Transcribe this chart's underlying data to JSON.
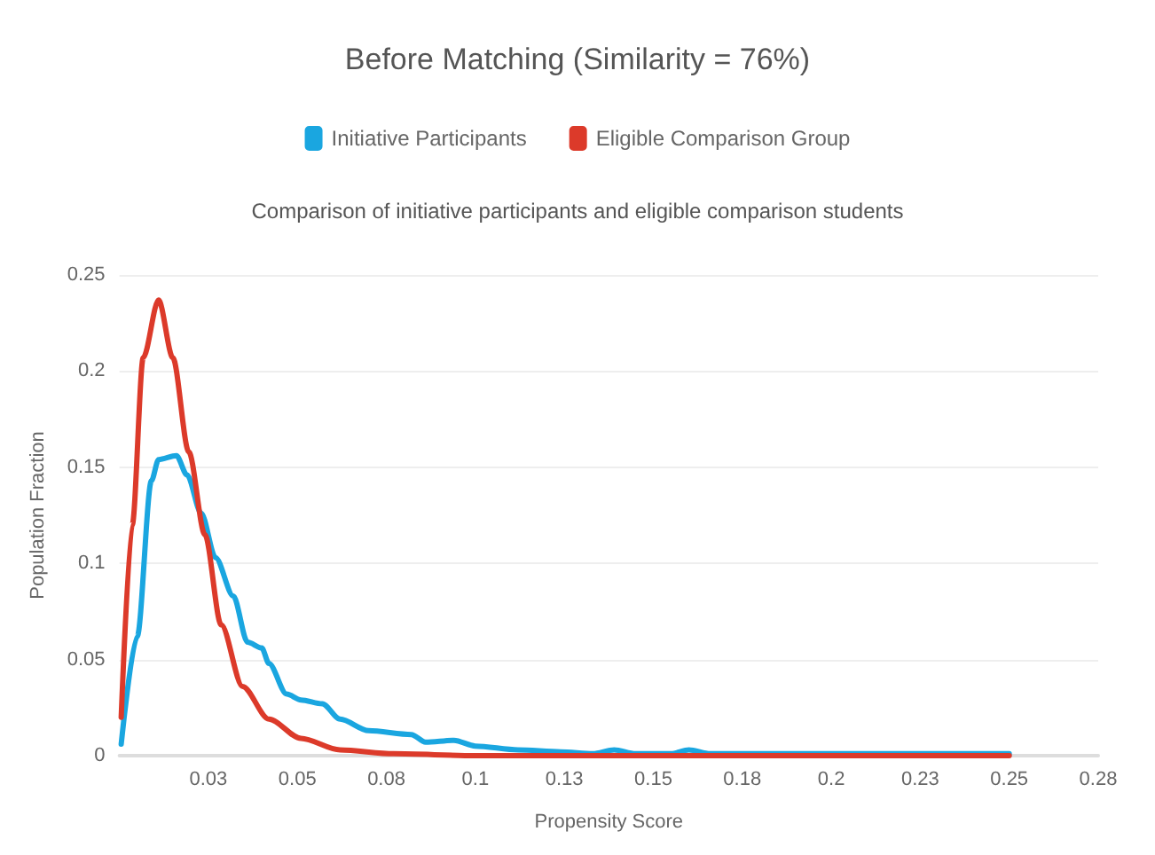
{
  "chart_data": {
    "type": "line",
    "title": "Before Matching (Similarity = 76%)",
    "subtitle": "Comparison of initiative participants and eligible comparison students",
    "xlabel": "Propensity Score",
    "ylabel": "Population Fraction",
    "xlim": [
      0,
      0.275
    ],
    "xticks": [
      {
        "value": 0.025,
        "label": "0.03"
      },
      0.05,
      {
        "value": 0.075,
        "label": "0.08"
      },
      0.1,
      {
        "value": 0.125,
        "label": "0.13"
      },
      0.15,
      {
        "value": 0.175,
        "label": "0.18"
      },
      0.2,
      {
        "value": 0.225,
        "label": "0.23"
      },
      0.25,
      {
        "value": 0.275,
        "label": "0.28"
      }
    ],
    "ylim": [
      0,
      0.25
    ],
    "yticks": [
      0,
      0.05,
      0.1,
      0.15,
      0.2,
      0.25
    ],
    "grid": "y",
    "legend": "top",
    "marker": "none",
    "line_style": "solid",
    "series": [
      {
        "name": "Initiative Participants",
        "color": "#1aa6e0",
        "x": [
          0.0005,
          0.005,
          0.009,
          0.011,
          0.016,
          0.019,
          0.023,
          0.027,
          0.032,
          0.036,
          0.04,
          0.042,
          0.047,
          0.051,
          0.057,
          0.062,
          0.07,
          0.082,
          0.086,
          0.094,
          0.1,
          0.112,
          0.124,
          0.133,
          0.139,
          0.145,
          0.155,
          0.16,
          0.166,
          0.18,
          0.2,
          0.22,
          0.25
        ],
        "values": [
          0.006,
          0.062,
          0.143,
          0.154,
          0.156,
          0.146,
          0.126,
          0.103,
          0.083,
          0.059,
          0.056,
          0.048,
          0.032,
          0.029,
          0.027,
          0.019,
          0.013,
          0.011,
          0.007,
          0.008,
          0.005,
          0.003,
          0.002,
          0.001,
          0.003,
          0.001,
          0.001,
          0.003,
          0.001,
          0.001,
          0.001,
          0.001,
          0.001
        ]
      },
      {
        "name": "Eligible Comparison Group",
        "color": "#dc3a2a",
        "x": [
          0.0005,
          0.0036,
          0.0067,
          0.011,
          0.015,
          0.0195,
          0.024,
          0.0286,
          0.0346,
          0.042,
          0.051,
          0.062,
          0.077,
          0.1,
          0.15,
          0.2,
          0.25
        ],
        "values": [
          0.02,
          0.12,
          0.207,
          0.237,
          0.207,
          0.158,
          0.115,
          0.068,
          0.036,
          0.019,
          0.009,
          0.003,
          0.001,
          0,
          0,
          0,
          0
        ]
      }
    ]
  }
}
